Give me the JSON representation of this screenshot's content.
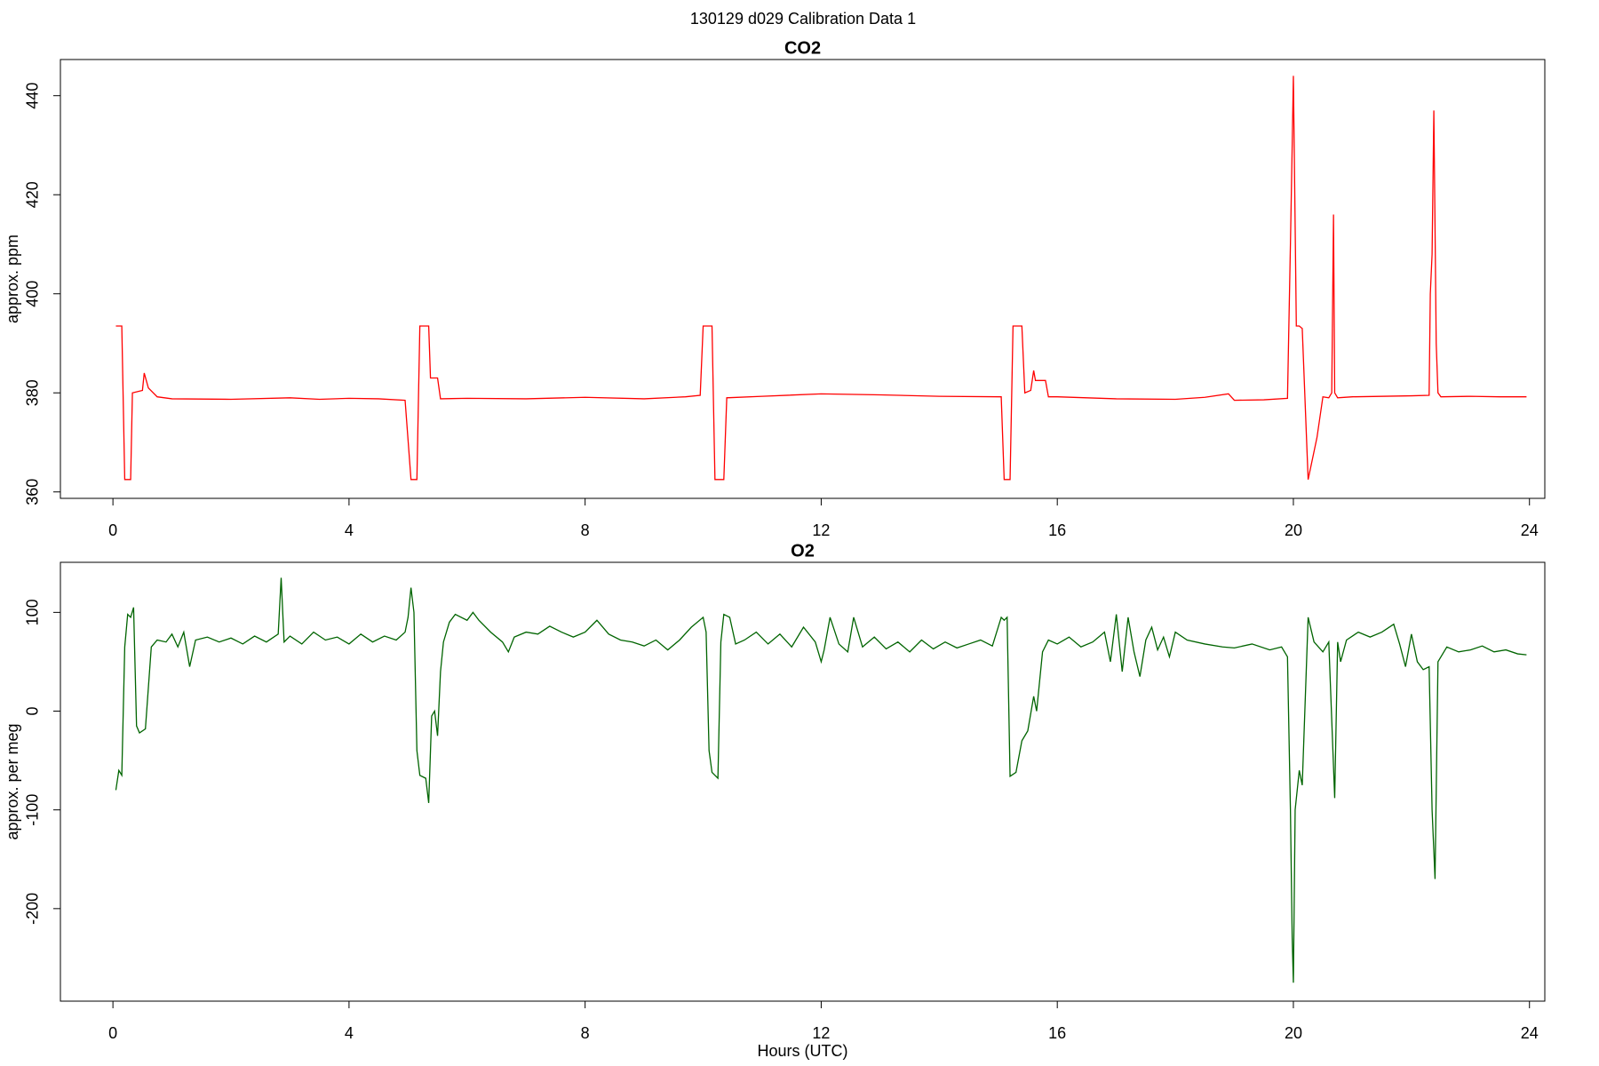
{
  "title": "130129   d029   Calibration Data 1",
  "chart_data": [
    {
      "type": "line",
      "title": "CO2",
      "ylabel": "approx. ppm",
      "xlim": [
        -0.89,
        24.26
      ],
      "xticks": [
        0,
        4,
        8,
        12,
        16,
        20,
        24
      ],
      "ylim": [
        358.7,
        447.3
      ],
      "yticks": [
        360,
        380,
        400,
        420,
        440
      ],
      "series": [
        {
          "color": "#ff0000",
          "x": [
            0.05,
            0.15,
            0.2,
            0.3,
            0.33,
            0.5,
            0.53,
            0.6,
            0.75,
            1,
            2,
            3,
            3.5,
            4,
            4.5,
            4.95,
            5.05,
            5.15,
            5.2,
            5.35,
            5.38,
            5.5,
            5.55,
            6,
            7,
            8,
            9,
            9.7,
            9.95,
            10.0,
            10.15,
            10.2,
            10.35,
            10.4,
            11,
            12,
            13,
            14,
            15.05,
            15.1,
            15.2,
            15.25,
            15.4,
            15.45,
            15.55,
            15.6,
            15.63,
            15.8,
            15.85,
            16,
            17,
            18,
            18.5,
            18.9,
            19,
            19.5,
            19.9,
            19.95,
            19.98,
            20.0,
            20.05,
            20.1,
            20.15,
            20.25,
            20.4,
            20.5,
            20.6,
            20.65,
            20.68,
            20.7,
            20.75,
            21,
            22,
            22.3,
            22.32,
            22.35,
            22.38,
            22.42,
            22.45,
            22.5,
            23,
            23.5,
            23.95
          ],
          "values": [
            393.5,
            393.5,
            362.5,
            362.5,
            380,
            380.5,
            384,
            381,
            379.2,
            378.8,
            378.7,
            379,
            378.7,
            378.9,
            378.8,
            378.5,
            362.5,
            362.5,
            393.5,
            393.5,
            383,
            383,
            378.8,
            378.9,
            378.8,
            379.1,
            378.8,
            379.2,
            379.5,
            393.5,
            393.5,
            362.5,
            362.5,
            379,
            379.3,
            379.8,
            379.6,
            379.3,
            379.2,
            362.5,
            362.5,
            393.5,
            393.5,
            380,
            380.5,
            384.5,
            382.5,
            382.5,
            379.2,
            379.2,
            378.8,
            378.7,
            379.1,
            379.8,
            378.5,
            378.6,
            378.9,
            410,
            430,
            444,
            393.5,
            393.5,
            393,
            362.5,
            371,
            379.2,
            379,
            380,
            416,
            380,
            379,
            379.2,
            379.4,
            379.5,
            400,
            408,
            437,
            390,
            380,
            379.2,
            379.3,
            379.2,
            379.2
          ]
        }
      ]
    },
    {
      "type": "line",
      "title": "O2",
      "ylabel": "approx. per meg",
      "xlabel": "Hours (UTC)",
      "xlim": [
        -0.89,
        24.26
      ],
      "xticks": [
        0,
        4,
        8,
        12,
        16,
        20,
        24
      ],
      "ylim": [
        -293.7,
        150.7
      ],
      "yticks": [
        -200,
        -100,
        0,
        100
      ],
      "series": [
        {
          "color": "#006400",
          "x": [
            0.05,
            0.1,
            0.15,
            0.2,
            0.25,
            0.3,
            0.35,
            0.4,
            0.45,
            0.55,
            0.65,
            0.75,
            0.9,
            1.0,
            1.1,
            1.2,
            1.3,
            1.4,
            1.6,
            1.8,
            2.0,
            2.2,
            2.4,
            2.6,
            2.8,
            2.85,
            2.9,
            3.0,
            3.2,
            3.4,
            3.6,
            3.8,
            4.0,
            4.2,
            4.4,
            4.6,
            4.8,
            4.95,
            5.0,
            5.05,
            5.1,
            5.15,
            5.2,
            5.3,
            5.35,
            5.4,
            5.45,
            5.5,
            5.55,
            5.6,
            5.7,
            5.8,
            6.0,
            6.1,
            6.2,
            6.4,
            6.6,
            6.7,
            6.8,
            7.0,
            7.2,
            7.4,
            7.6,
            7.8,
            8.0,
            8.2,
            8.4,
            8.6,
            8.8,
            9.0,
            9.2,
            9.4,
            9.6,
            9.8,
            10.0,
            10.05,
            10.1,
            10.15,
            10.25,
            10.3,
            10.35,
            10.45,
            10.55,
            10.7,
            10.9,
            11.1,
            11.3,
            11.5,
            11.7,
            11.9,
            12.0,
            12.05,
            12.15,
            12.3,
            12.45,
            12.55,
            12.7,
            12.9,
            13.1,
            13.3,
            13.5,
            13.7,
            13.9,
            14.1,
            14.3,
            14.5,
            14.7,
            14.9,
            15.05,
            15.1,
            15.15,
            15.2,
            15.3,
            15.4,
            15.5,
            15.6,
            15.65,
            15.75,
            15.85,
            16.0,
            16.2,
            16.4,
            16.6,
            16.8,
            16.9,
            17.0,
            17.1,
            17.2,
            17.3,
            17.4,
            17.5,
            17.6,
            17.7,
            17.8,
            17.9,
            18.0,
            18.2,
            18.5,
            18.8,
            19.0,
            19.3,
            19.6,
            19.8,
            19.9,
            19.95,
            19.98,
            20.0,
            20.03,
            20.1,
            20.15,
            20.25,
            20.35,
            20.5,
            20.6,
            20.7,
            20.75,
            20.8,
            20.9,
            21.1,
            21.3,
            21.5,
            21.7,
            21.8,
            21.9,
            22.0,
            22.1,
            22.2,
            22.3,
            22.35,
            22.4,
            22.45,
            22.6,
            22.8,
            23.0,
            23.2,
            23.4,
            23.6,
            23.8,
            23.95
          ],
          "values": [
            -80,
            -60,
            -65,
            65,
            98,
            95,
            105,
            -15,
            -22,
            -18,
            65,
            72,
            70,
            78,
            65,
            80,
            45,
            72,
            75,
            70,
            74,
            68,
            76,
            70,
            78,
            135,
            70,
            76,
            68,
            80,
            72,
            75,
            68,
            78,
            70,
            76,
            72,
            80,
            95,
            125,
            100,
            -40,
            -65,
            -68,
            -93,
            -5,
            0,
            -25,
            40,
            70,
            90,
            98,
            92,
            100,
            92,
            80,
            70,
            60,
            75,
            80,
            78,
            86,
            80,
            75,
            80,
            92,
            78,
            72,
            70,
            66,
            72,
            62,
            72,
            85,
            95,
            80,
            -40,
            -62,
            -68,
            70,
            98,
            95,
            68,
            72,
            80,
            68,
            78,
            65,
            85,
            70,
            50,
            62,
            95,
            68,
            60,
            95,
            65,
            75,
            63,
            70,
            60,
            72,
            63,
            70,
            64,
            68,
            72,
            66,
            95,
            92,
            95,
            -66,
            -62,
            -30,
            -20,
            15,
            0,
            60,
            72,
            68,
            75,
            65,
            70,
            80,
            50,
            98,
            40,
            95,
            60,
            35,
            72,
            85,
            62,
            75,
            55,
            80,
            72,
            68,
            65,
            64,
            68,
            62,
            65,
            55,
            -100,
            -230,
            -275,
            -100,
            -60,
            -75,
            95,
            70,
            60,
            70,
            -88,
            70,
            50,
            72,
            80,
            75,
            80,
            88,
            68,
            45,
            78,
            50,
            42,
            45,
            -100,
            -170,
            50,
            65,
            60,
            62,
            66,
            60,
            62,
            58,
            57
          ]
        }
      ]
    }
  ]
}
